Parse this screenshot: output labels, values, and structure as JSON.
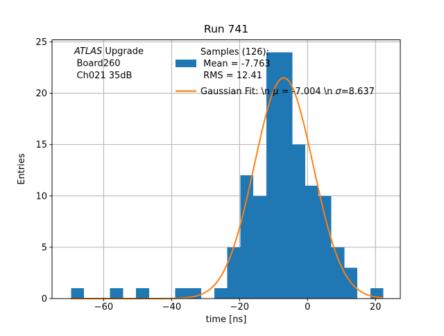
{
  "chart_data": {
    "type": "histogram",
    "title": "Run 741",
    "xlabel": "time [ns]",
    "ylabel": "Entries",
    "xlim": [
      -75.2,
      27.3
    ],
    "ylim": [
      0,
      25.2
    ],
    "grid": true,
    "xticks": [
      {
        "value": -60,
        "label": "−60"
      },
      {
        "value": -40,
        "label": "−40"
      },
      {
        "value": -20,
        "label": "−20"
      },
      {
        "value": 0,
        "label": "0"
      },
      {
        "value": 20,
        "label": "20"
      }
    ],
    "yticks": [
      {
        "value": 0,
        "label": "0"
      },
      {
        "value": 5,
        "label": "5"
      },
      {
        "value": 10,
        "label": "10"
      },
      {
        "value": 15,
        "label": "15"
      },
      {
        "value": 20,
        "label": "20"
      },
      {
        "value": 25,
        "label": "25"
      }
    ],
    "bin_start": -69.6,
    "bin_width": 3.83,
    "counts": [
      1,
      0,
      0,
      1,
      0,
      1,
      0,
      0,
      1,
      1,
      0,
      1,
      5,
      12,
      10,
      24,
      24,
      15,
      11,
      10,
      5,
      3,
      0,
      1
    ],
    "sample_count": 126,
    "mean": -7.763,
    "rms": 12.41,
    "gaussian_fit": {
      "mu": -7.004,
      "sigma": 8.637,
      "amplitude": 21.5
    },
    "colors": {
      "bars": "#1f77b4",
      "fit": "#ff7f0e",
      "grid": "#b0b0b0",
      "axis": "#000000",
      "text": "#000000"
    },
    "legend": {
      "samples": {
        "lines": [
          "Samples (126):",
          " Mean = -7.763",
          " RMS = 12.41"
        ]
      },
      "fit": {
        "segments": [
          {
            "text": "Gaussian Fit: \\n ",
            "italic": false
          },
          {
            "text": "μ",
            "italic": true
          },
          {
            "text": " = -7.004 \\n ",
            "italic": false
          },
          {
            "text": "σ",
            "italic": true
          },
          {
            "text": "=8.637",
            "italic": false
          }
        ]
      }
    },
    "annotation_lines": [
      {
        "segments": [
          {
            "text": "ATLAS",
            "italic": true
          },
          {
            "text": " Upgrade",
            "italic": false
          }
        ]
      },
      {
        "segments": [
          {
            "text": "Board260",
            "italic": false
          }
        ]
      },
      {
        "segments": [
          {
            "text": "Ch021 35dB",
            "italic": false
          }
        ]
      }
    ]
  }
}
